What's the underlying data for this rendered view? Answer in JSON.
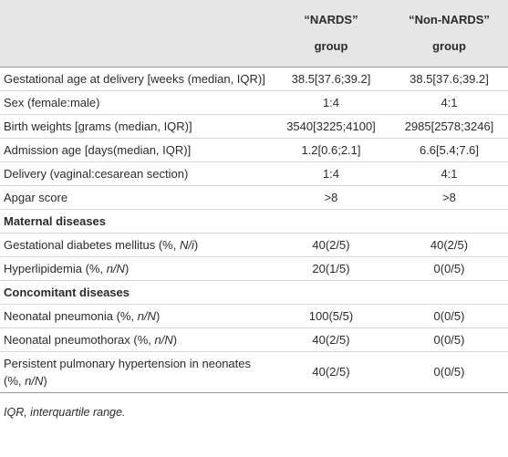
{
  "table": {
    "headers": [
      [
        "“NARDS”",
        "group"
      ],
      [
        "“Non-NARDS”",
        "group"
      ]
    ],
    "rows": [
      {
        "label": "Gestational age at delivery [weeks (median, IQR)]",
        "values": [
          "38.5[37.6;39.2]",
          "38.5[37.6;39.2]"
        ]
      },
      {
        "label": "Sex (female:male)",
        "values": [
          "1:4",
          "4:1"
        ]
      },
      {
        "label": "Birth weights [grams (median, IQR)]",
        "values": [
          "3540[3225;4100]",
          "2985[2578;3246]"
        ]
      },
      {
        "label": "Admission age [days(median, IQR)]",
        "values": [
          "1.2[0.6;2.1]",
          "6.6[5.4;7.6]"
        ]
      },
      {
        "label": "Delivery (vaginal:cesarean section)",
        "values": [
          "1:4",
          "4:1"
        ]
      },
      {
        "label": "Apgar score",
        "values": [
          ">8",
          ">8"
        ]
      },
      {
        "section": "Maternal diseases"
      },
      {
        "label": [
          {
            "text": "Gestational diabetes mellitus (%, "
          },
          {
            "text": "N/i",
            "italic": true
          },
          {
            "text": ")"
          }
        ],
        "values": [
          "40(2/5)",
          "40(2/5)"
        ]
      },
      {
        "label": [
          {
            "text": "Hyperlipidemia (%, "
          },
          {
            "text": "n/N",
            "italic": true
          },
          {
            "text": ")"
          }
        ],
        "values": [
          "20(1/5)",
          "0(0/5)"
        ]
      },
      {
        "section": "Concomitant diseases"
      },
      {
        "label": [
          {
            "text": "Neonatal pneumonia (%, "
          },
          {
            "text": "n/N",
            "italic": true
          },
          {
            "text": ")"
          }
        ],
        "values": [
          "100(5/5)",
          "0(0/5)"
        ]
      },
      {
        "label": [
          {
            "text": "Neonatal pneumothorax (%, "
          },
          {
            "text": "n/N",
            "italic": true
          },
          {
            "text": ")"
          }
        ],
        "values": [
          "40(2/5)",
          "0(0/5)"
        ]
      },
      {
        "label": [
          {
            "text": "Persistent pulmonary hypertension in neonates (%, "
          },
          {
            "text": "n/N",
            "italic": true
          },
          {
            "text": ")"
          }
        ],
        "values": [
          "40(2/5)",
          "0(0/5)"
        ]
      }
    ],
    "footnote": "IQR, interquartile range."
  }
}
